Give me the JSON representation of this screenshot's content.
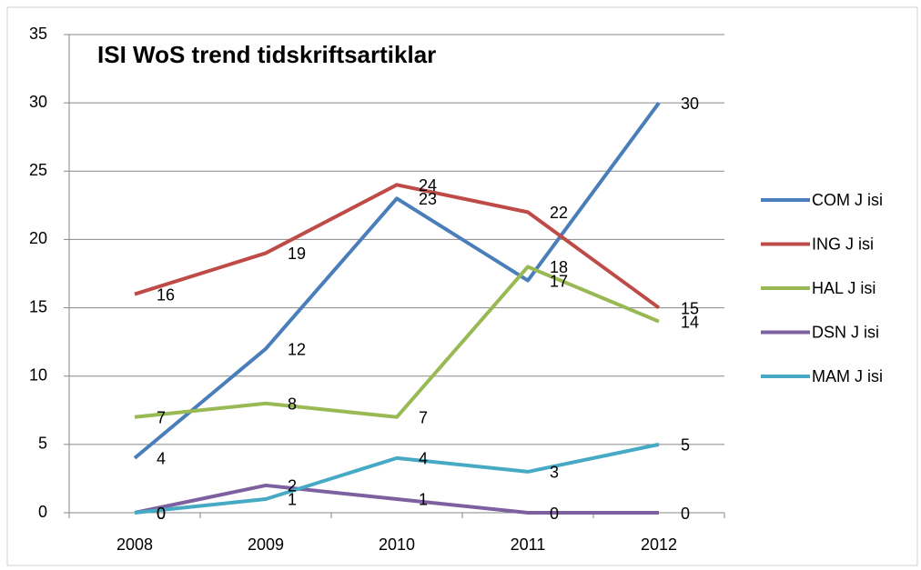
{
  "chart_data": {
    "type": "line",
    "title": "ISI WoS trend tidskriftsartiklar",
    "categories": [
      "2008",
      "2009",
      "2010",
      "2011",
      "2012"
    ],
    "series": [
      {
        "name": "COM J isi",
        "color": "#4a7ebb",
        "values": [
          4,
          12,
          23,
          17,
          30
        ]
      },
      {
        "name": "ING J isi",
        "color": "#be4b48",
        "values": [
          16,
          19,
          24,
          22,
          15
        ]
      },
      {
        "name": "HAL J isi",
        "color": "#98b954",
        "values": [
          7,
          8,
          7,
          18,
          14
        ]
      },
      {
        "name": "DSN J isi",
        "color": "#7d60a0",
        "values": [
          0,
          2,
          1,
          0,
          0
        ]
      },
      {
        "name": "MAM J isi",
        "color": "#46aac5",
        "values": [
          0,
          1,
          4,
          3,
          5
        ]
      }
    ],
    "ylim": [
      0,
      35
    ],
    "yticks": [
      0,
      5,
      10,
      15,
      20,
      25,
      30,
      35
    ],
    "grid": true,
    "legend": "right"
  }
}
